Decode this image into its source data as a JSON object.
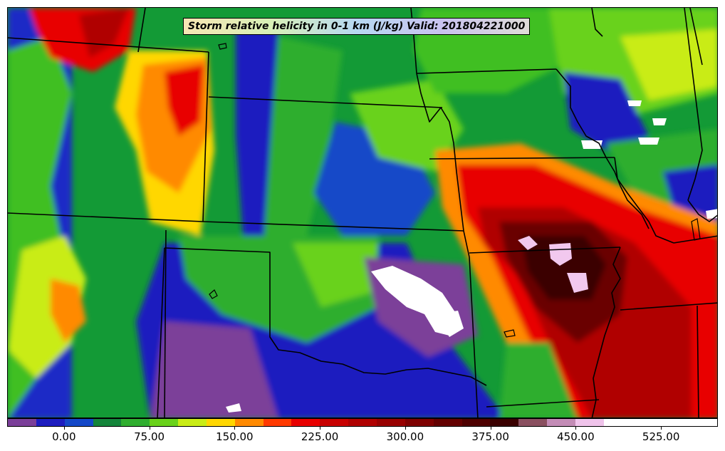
{
  "title": "Storm relative helicity in 0-1 km (J/kg) Valid: 201804221000",
  "colorbar": {
    "colors": [
      "#7b3f99",
      "#1d1dbf",
      "#1448c8",
      "#13853a",
      "#2fae2f",
      "#69d21a",
      "#c9ec16",
      "#ffd700",
      "#ff8a00",
      "#ff3a00",
      "#e80000",
      "#c80000",
      "#b00000",
      "#980000",
      "#7e0000",
      "#640000",
      "#4e0000",
      "#3a0000",
      "#8a5060",
      "#c38cb6",
      "#efc3ea",
      "#ffffff",
      "#ffffff",
      "#ffffff",
      "#ffffff"
    ],
    "tick_labels": [
      "0.00",
      "75.00",
      "150.00",
      "225.00",
      "300.00",
      "375.00",
      "450.00",
      "525.00"
    ],
    "tick_values": [
      0,
      75,
      150,
      225,
      300,
      375,
      450,
      525
    ],
    "range": [
      -50,
      575
    ]
  },
  "map": {
    "region": "Southern and Central Plains, United States",
    "field": "0-1 km storm relative helicity"
  }
}
